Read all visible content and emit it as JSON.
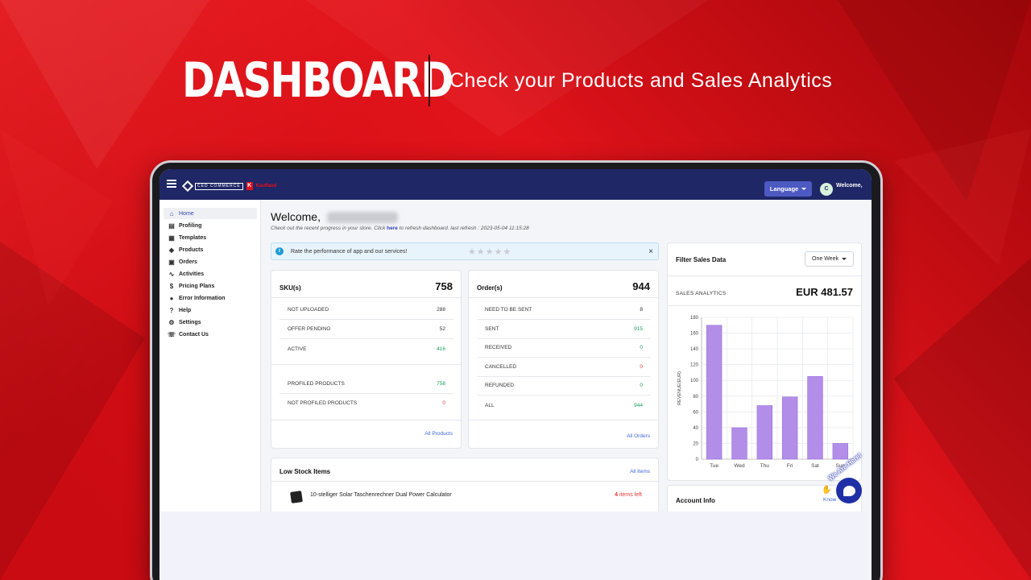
{
  "hero": {
    "title": "DASHBOARD",
    "subtitle": "Check your Products and Sales Analytics"
  },
  "topbar": {
    "logo_text": "CED COMMERCE",
    "logo_partner": "Kaufland",
    "language_label": "Language",
    "welcome_label": "Welcome,",
    "avatar_initials": "C"
  },
  "sidebar": {
    "items": [
      {
        "label": "Home",
        "icon": "home-icon"
      },
      {
        "label": "Profiling",
        "icon": "profiling-icon"
      },
      {
        "label": "Templates",
        "icon": "templates-icon"
      },
      {
        "label": "Products",
        "icon": "tag-icon"
      },
      {
        "label": "Orders",
        "icon": "orders-icon"
      },
      {
        "label": "Activities",
        "icon": "activity-icon"
      },
      {
        "label": "Pricing Plans",
        "icon": "dollar-icon"
      },
      {
        "label": "Error Information",
        "icon": "info-icon"
      },
      {
        "label": "Help",
        "icon": "help-icon"
      },
      {
        "label": "Settings",
        "icon": "gear-icon"
      },
      {
        "label": "Contact Us",
        "icon": "phone-icon"
      }
    ]
  },
  "main": {
    "welcome": "Welcome,",
    "sub_prefix": "Check out the recent progress in your store. Click ",
    "sub_link": "here",
    "sub_suffix": " to refresh dashboard. last refresh : 2023-05-04 11:15:28",
    "rate_text": "Rate the performance of app and our services!",
    "stars": "★★★★★",
    "close": "×"
  },
  "sku": {
    "title": "SKU(s)",
    "total": "758",
    "rows": [
      {
        "label": "NOT UPLOADED",
        "value": "288"
      },
      {
        "label": "OFFER PENDING",
        "value": "52"
      },
      {
        "label": "ACTIVE",
        "value": "416"
      }
    ],
    "rows2": [
      {
        "label": "PROFILED PRODUCTS",
        "value": "758"
      },
      {
        "label": "NOT PROFILED PRODUCTS",
        "value": "0"
      }
    ],
    "link": "All Products"
  },
  "orders": {
    "title": "Order(s)",
    "total": "944",
    "rows": [
      {
        "label": "NEED TO BE SENT",
        "value": "8"
      },
      {
        "label": "SENT",
        "value": "915"
      },
      {
        "label": "RECEIVED",
        "value": "0"
      },
      {
        "label": "CANCELLED",
        "value": "0"
      },
      {
        "label": "REFUNDED",
        "value": "0"
      },
      {
        "label": "ALL",
        "value": "944"
      }
    ],
    "link": "All Orders"
  },
  "low_stock": {
    "title": "Low Stock Items",
    "link": "All Items",
    "item_name": "10-stelliger Solar Taschenrechner Dual Power Calculator",
    "item_count": "4",
    "item_suffix": " items left"
  },
  "filter": {
    "title": "Filter Sales Data",
    "range": "One Week",
    "analytics_label": "SALES ANALYTICS",
    "analytics_value": "EUR 481.57"
  },
  "account": {
    "title": "Account Info",
    "link": "Know"
  },
  "chat": {
    "tag": "We Are Here!"
  },
  "chart_data": {
    "type": "bar",
    "categories": [
      "Tue",
      "Wed",
      "Thu",
      "Fri",
      "Sat",
      "Sun"
    ],
    "values": [
      170,
      40,
      68,
      79,
      105,
      20
    ],
    "ylabel": "REVENUE(EUR)",
    "ylim": [
      0,
      180
    ],
    "yticks": [
      0,
      20,
      40,
      60,
      80,
      100,
      120,
      140,
      160,
      180
    ],
    "grid": true,
    "bar_color": "#b28ee8",
    "bar_edge": "#9a6ee0"
  },
  "colors": {
    "topbar": "#1f2766",
    "accent": "#4d5ac1",
    "green": "#18a05a",
    "red": "#e53935",
    "link": "#3a67d8"
  }
}
